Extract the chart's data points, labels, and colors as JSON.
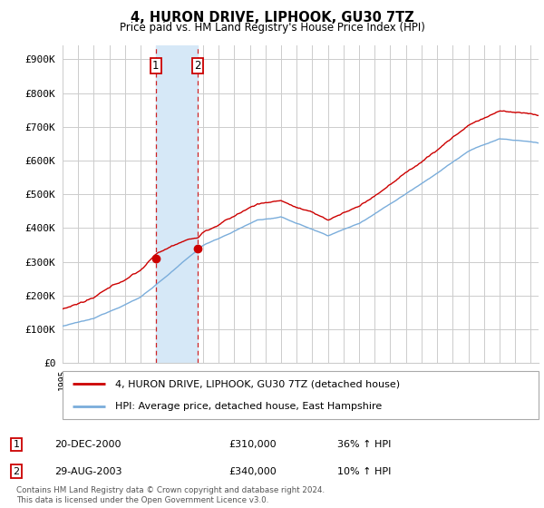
{
  "title": "4, HURON DRIVE, LIPHOOK, GU30 7TZ",
  "subtitle": "Price paid vs. HM Land Registry's House Price Index (HPI)",
  "ylabel_ticks": [
    "£0",
    "£100K",
    "£200K",
    "£300K",
    "£400K",
    "£500K",
    "£600K",
    "£700K",
    "£800K",
    "£900K"
  ],
  "ytick_values": [
    0,
    100000,
    200000,
    300000,
    400000,
    500000,
    600000,
    700000,
    800000,
    900000
  ],
  "ylim": [
    0,
    940000
  ],
  "xlim_start": 1995.0,
  "xlim_end": 2025.5,
  "transaction1": {
    "date_num": 2000.97,
    "price": 310000,
    "label": "1",
    "date_str": "20-DEC-2000",
    "price_str": "£310,000",
    "hpi_diff": "36% ↑ HPI"
  },
  "transaction2": {
    "date_num": 2003.66,
    "price": 340000,
    "label": "2",
    "date_str": "29-AUG-2003",
    "price_str": "£340,000",
    "hpi_diff": "10% ↑ HPI"
  },
  "legend_line1": "4, HURON DRIVE, LIPHOOK, GU30 7TZ (detached house)",
  "legend_line2": "HPI: Average price, detached house, East Hampshire",
  "footer": "Contains HM Land Registry data © Crown copyright and database right 2024.\nThis data is licensed under the Open Government Licence v3.0.",
  "line_color_red": "#cc0000",
  "line_color_blue": "#7aaddb",
  "shade_color": "#d6e8f7",
  "grid_color": "#cccccc",
  "background_color": "#ffffff",
  "box_color_red": "#cc0000"
}
